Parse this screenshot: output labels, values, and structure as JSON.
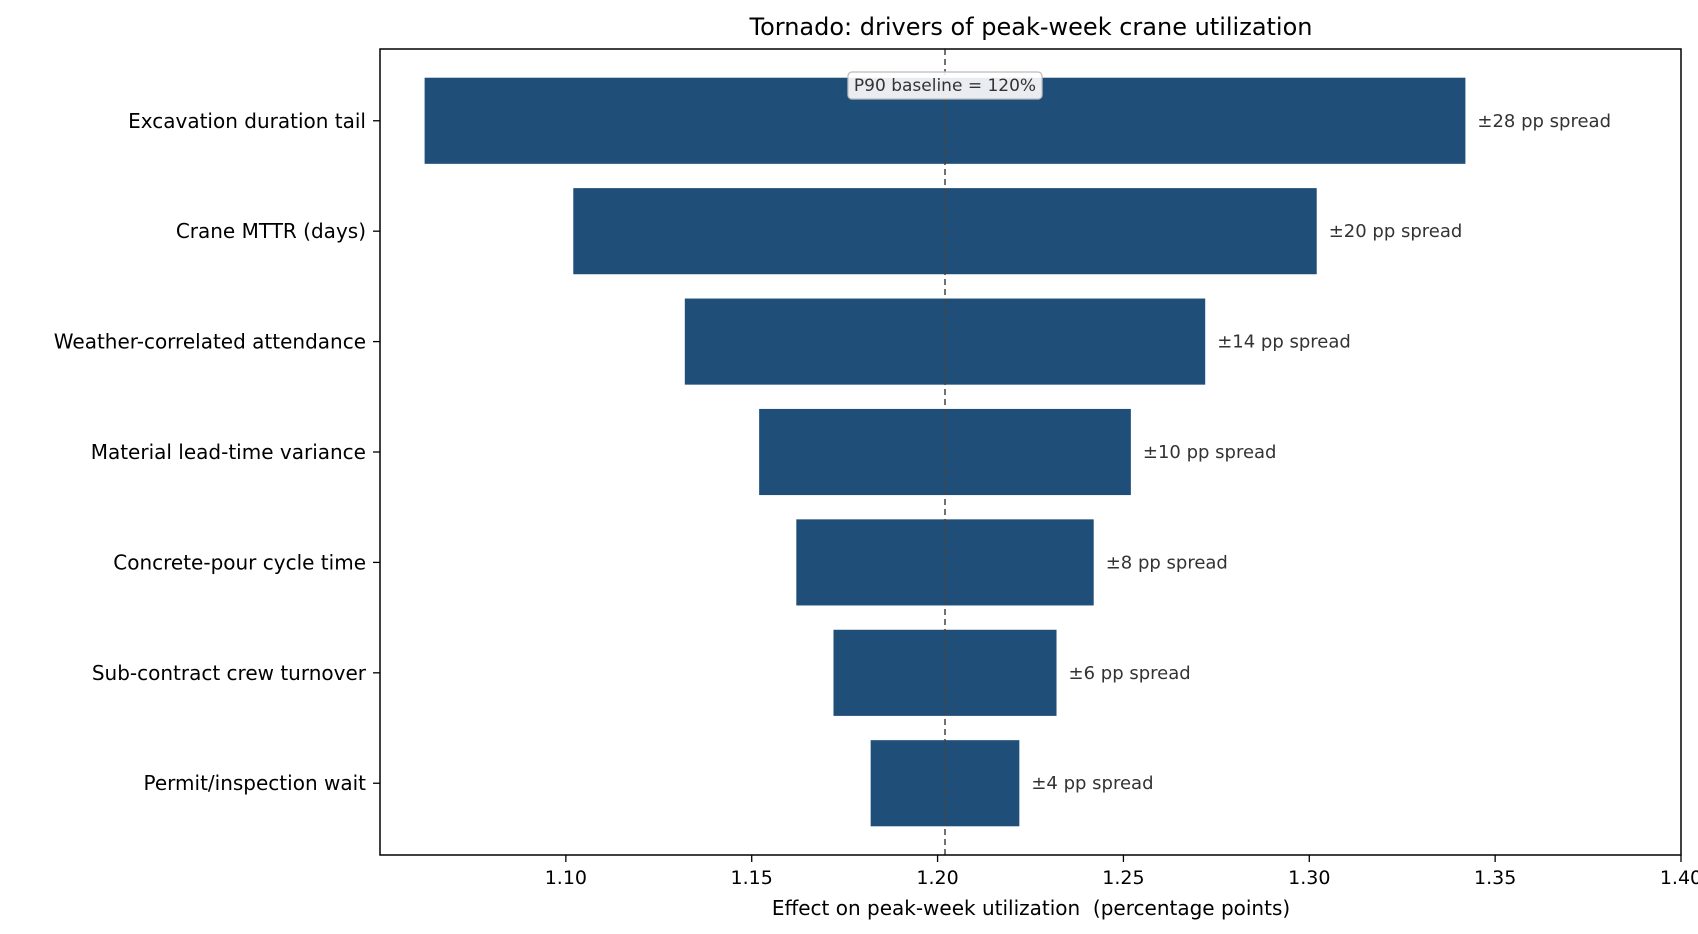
{
  "chart_data": {
    "type": "bar",
    "orientation": "horizontal",
    "title": "Tornado: drivers of peak-week crane utilization",
    "xlabel": "Effect on peak-week utilization  (percentage points)",
    "ylabel": "",
    "xlim": [
      1.05,
      1.4
    ],
    "xticks": [
      "1.10",
      "1.15",
      "1.20",
      "1.25",
      "1.30",
      "1.35",
      "1.40"
    ],
    "baseline": 1.202,
    "baseline_label": "P90 baseline = 120%",
    "bar_color": "#1f4e79",
    "grid": false,
    "legend": "none",
    "categories": [
      "Excavation duration tail",
      "Crane MTTR (days)",
      "Weather-correlated attendance",
      "Material lead-time variance",
      "Concrete-pour cycle time",
      "Sub-contract crew turnover",
      "Permit/inspection wait"
    ],
    "low": [
      1.062,
      1.102,
      1.132,
      1.152,
      1.162,
      1.172,
      1.182
    ],
    "high": [
      1.342,
      1.302,
      1.272,
      1.252,
      1.242,
      1.232,
      1.222
    ],
    "spread_labels": [
      "±28 pp spread",
      "±20 pp spread",
      "±14 pp spread",
      "±10 pp spread",
      "±8 pp spread",
      "±6 pp spread",
      "±4 pp spread"
    ]
  }
}
